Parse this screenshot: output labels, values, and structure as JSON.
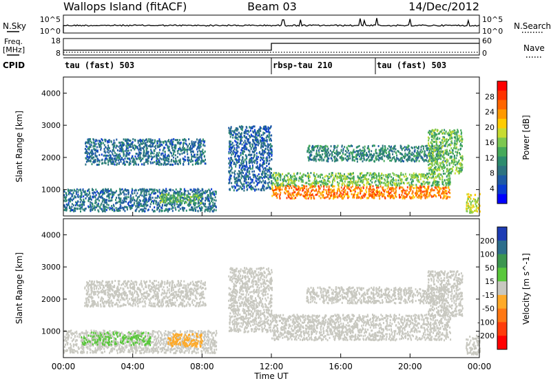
{
  "header": {
    "station": "Wallops Island (fitACF)",
    "beam": "Beam 03",
    "date": "14/Dec/2012"
  },
  "params": {
    "nsky_label": "N.Sky",
    "nsky_top": "10^5",
    "nsky_bottom": "10^0",
    "nsearch_label": "N.Search",
    "nsearch_top": "10^5",
    "nsearch_bottom": "10^0",
    "freq_label_1": "Freq.",
    "freq_label_2": "[MHz]",
    "freq_top": "18",
    "freq_bottom": "8",
    "nave_label": "Nave",
    "nave_top": "60",
    "nave_bottom": "0",
    "cpid_label": "CPID",
    "cpid_segments": [
      {
        "label": "tau (fast) 503",
        "start": 0.0,
        "end": 12.0
      },
      {
        "label": "rbsp-tau 210",
        "start": 12.0,
        "end": 18.0
      },
      {
        "label": "tau (fast) 503",
        "start": 18.0,
        "end": 24.0
      }
    ]
  },
  "power_panel": {
    "ylabel": "Slant Range [km]",
    "cbar_label": "Power [dB]",
    "cbar_ticks": [
      "28",
      "24",
      "20",
      "16",
      "12",
      "8",
      "4"
    ],
    "cbar_colors": [
      "#ff0000",
      "#ff3300",
      "#ff6600",
      "#ff9900",
      "#ffcc00",
      "#c8dc32",
      "#7dc850",
      "#46aa5a",
      "#2d8c6e",
      "#2d7380",
      "#1e5aa5",
      "#0a3cd2",
      "#0000ff"
    ]
  },
  "velocity_panel": {
    "ylabel": "Slant Range [km]",
    "cbar_label": "Velocity [m s^-1]",
    "cbar_ticks": [
      "200",
      "100",
      "50",
      "15",
      "-15",
      "-50",
      "-100",
      "-200"
    ],
    "cbar_colors": [
      "#1e3cb4",
      "#2d6e8c",
      "#3c9650",
      "#5ac83c",
      "#c8c8c0",
      "#ffaa28",
      "#ff7814",
      "#ff3c0a",
      "#ff0000"
    ]
  },
  "xaxis": {
    "label": "Time UT",
    "ticks": [
      "00:00",
      "04:00",
      "08:00",
      "12:00",
      "16:00",
      "20:00",
      "00:00"
    ]
  },
  "colors": {
    "frame": "#000000",
    "background": "#ffffff"
  },
  "chart_data": [
    {
      "type": "heatmap",
      "name": "power",
      "x_range": [
        0,
        24
      ],
      "y_range": [
        180,
        4500
      ],
      "yticks": [
        1000,
        2000,
        3000,
        4000
      ],
      "units": "dB",
      "scale": [
        0,
        30
      ],
      "regions": [
        {
          "t0": 0.0,
          "t1": 8.8,
          "r0": 350,
          "r1": 1050,
          "level": 7
        },
        {
          "t0": 1.2,
          "t1": 8.2,
          "r0": 1800,
          "r1": 2600,
          "level": 7
        },
        {
          "t0": 5.5,
          "t1": 8.0,
          "r0": 600,
          "r1": 900,
          "level": 14
        },
        {
          "t0": 9.5,
          "t1": 12.0,
          "r0": 1000,
          "r1": 3000,
          "level": 6
        },
        {
          "t0": 12.0,
          "t1": 22.3,
          "r0": 750,
          "r1": 1150,
          "level": 24
        },
        {
          "t0": 12.0,
          "t1": 22.3,
          "r0": 1150,
          "r1": 1550,
          "level": 14
        },
        {
          "t0": 14.0,
          "t1": 22.0,
          "r0": 1900,
          "r1": 2400,
          "level": 9
        },
        {
          "t0": 21.0,
          "t1": 23.0,
          "r0": 1500,
          "r1": 2900,
          "level": 14
        },
        {
          "t0": 23.2,
          "t1": 24.0,
          "r0": 300,
          "r1": 900,
          "level": 18
        }
      ]
    },
    {
      "type": "heatmap",
      "name": "velocity",
      "x_range": [
        0,
        24
      ],
      "y_range": [
        180,
        4500
      ],
      "yticks": [
        1000,
        2000,
        3000,
        4000
      ],
      "units": "m s^-1",
      "scale": [
        -250,
        250
      ],
      "regions": [
        {
          "t0": 0.0,
          "t1": 8.8,
          "r0": 350,
          "r1": 1050,
          "level": 0
        },
        {
          "t0": 1.0,
          "t1": 5.0,
          "r0": 600,
          "r1": 1000,
          "level": 40
        },
        {
          "t0": 6.0,
          "t1": 8.0,
          "r0": 550,
          "r1": 950,
          "level": -70
        },
        {
          "t0": 1.2,
          "t1": 8.2,
          "r0": 1800,
          "r1": 2600,
          "level": 0
        },
        {
          "t0": 9.5,
          "t1": 12.0,
          "r0": 1000,
          "r1": 3000,
          "level": 0
        },
        {
          "t0": 12.0,
          "t1": 22.3,
          "r0": 750,
          "r1": 1550,
          "level": 0
        },
        {
          "t0": 14.0,
          "t1": 22.0,
          "r0": 1900,
          "r1": 2400,
          "level": 0
        },
        {
          "t0": 21.0,
          "t1": 23.0,
          "r0": 1500,
          "r1": 2900,
          "level": 0
        },
        {
          "t0": 23.2,
          "t1": 24.0,
          "r0": 300,
          "r1": 900,
          "level": 0
        }
      ]
    }
  ]
}
